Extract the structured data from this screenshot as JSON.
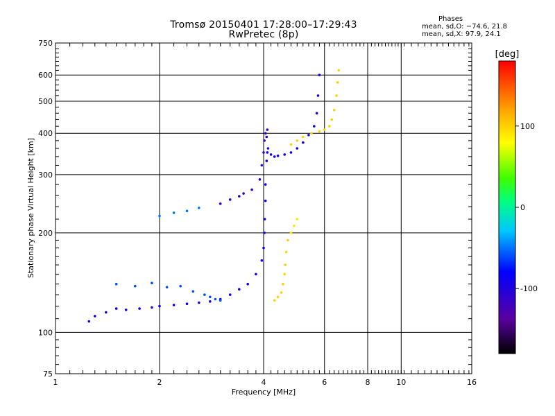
{
  "chart_data": {
    "type": "scatter",
    "title": "Tromsø 20150401 17:28:00–17:29:43",
    "subtitle": "RwPretec (8p)",
    "xlabel": "Frequency [MHz]",
    "ylabel": "Stationary phase Virtual Height [km]",
    "x_scale": "log",
    "y_scale": "log",
    "xlim": [
      1,
      16
    ],
    "ylim": [
      75,
      750
    ],
    "x_ticks": [
      1,
      2,
      4,
      6,
      8,
      10,
      16
    ],
    "y_ticks": [
      75,
      100,
      200,
      300,
      400,
      500,
      600,
      750
    ],
    "grid": true,
    "stats": {
      "heading": "Phases",
      "o_mode": "mean, sd,O: −74.6, 21.8",
      "x_mode": "mean, sd,X:  97.9, 24.1"
    },
    "colorbar": {
      "label": "[deg]",
      "range": [
        -180,
        180
      ],
      "ticks": [
        100,
        0,
        -100
      ]
    },
    "series": [
      {
        "color_phase": "-90",
        "x": [
          1.25,
          1.3,
          1.4,
          1.5,
          1.6,
          1.75,
          1.9,
          2.0,
          2.2,
          2.4,
          2.6,
          2.8,
          3.0,
          3.2,
          3.4,
          3.6,
          3.8,
          3.95,
          4.0,
          4.02,
          4.03,
          4.05,
          4.05,
          4.08,
          4.1,
          4.12,
          4.2,
          4.3,
          4.4,
          4.6,
          4.8,
          5.0,
          5.2,
          5.4,
          5.6,
          5.7,
          5.75,
          5.8
        ],
        "y": [
          108,
          112,
          115,
          118,
          117,
          118,
          119,
          120,
          121,
          122,
          123,
          124,
          126,
          130,
          135,
          140,
          150,
          165,
          180,
          200,
          220,
          250,
          280,
          330,
          350,
          360,
          345,
          340,
          342,
          345,
          350,
          360,
          375,
          395,
          420,
          460,
          520,
          600
        ]
      },
      {
        "color_phase": "-110",
        "x": [
          3.0,
          3.2,
          3.4,
          3.5,
          3.7,
          3.9,
          3.95,
          4.0,
          4.02,
          4.05,
          4.08,
          4.1
        ],
        "y": [
          245,
          252,
          258,
          263,
          270,
          290,
          320,
          350,
          380,
          400,
          390,
          410
        ]
      },
      {
        "color_phase": "-60",
        "x": [
          1.5,
          1.7,
          1.9,
          2.1,
          2.3,
          2.5,
          2.7,
          2.8,
          2.9,
          3.0
        ],
        "y": [
          140,
          138,
          141,
          137,
          138,
          133,
          130,
          128,
          126,
          125
        ]
      },
      {
        "color_phase": "-50",
        "x": [
          2.0,
          2.2,
          2.4,
          2.6
        ],
        "y": [
          225,
          230,
          233,
          238
        ]
      },
      {
        "color_phase": "100",
        "x": [
          4.3,
          4.4,
          4.5,
          4.55,
          4.6,
          4.62,
          4.65,
          4.7,
          4.8,
          5.0,
          5.2,
          5.5,
          5.8,
          6.0,
          6.2,
          6.3,
          6.4,
          6.5,
          6.55,
          6.6
        ],
        "y": [
          125,
          128,
          132,
          140,
          150,
          160,
          175,
          190,
          370,
          380,
          390,
          400,
          405,
          410,
          420,
          440,
          470,
          520,
          570,
          620
        ]
      },
      {
        "color_phase": "90",
        "x": [
          4.8,
          4.9,
          5.0
        ],
        "y": [
          200,
          210,
          220
        ]
      }
    ]
  }
}
